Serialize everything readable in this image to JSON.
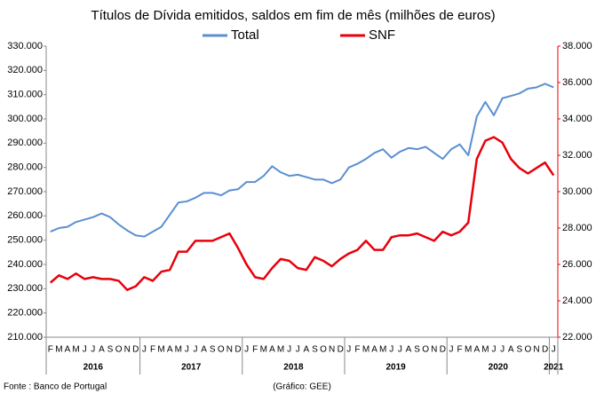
{
  "chart_data": {
    "type": "line",
    "title": "Títulos de Dívida emitidos, saldos em fim de mês  (milhões de euros)",
    "source": "Fonte : Banco de Portugal",
    "credit": "(Gráfico: GEE)",
    "categories": [
      "F",
      "M",
      "A",
      "M",
      "J",
      "J",
      "A",
      "S",
      "O",
      "N",
      "D",
      "J",
      "F",
      "M",
      "A",
      "M",
      "J",
      "J",
      "A",
      "S",
      "O",
      "N",
      "D",
      "J",
      "F",
      "M",
      "A",
      "M",
      "J",
      "J",
      "A",
      "S",
      "O",
      "N",
      "D",
      "J",
      "F",
      "M",
      "A",
      "M",
      "J",
      "J",
      "A",
      "S",
      "O",
      "N",
      "D",
      "J",
      "F",
      "M",
      "A",
      "M",
      "J",
      "J",
      "A",
      "S",
      "O",
      "N",
      "D",
      "J"
    ],
    "year_labels": [
      "2016",
      "2017",
      "2018",
      "2019",
      "2020",
      "2021"
    ],
    "ylim": [
      210000,
      330000
    ],
    "yticks": [
      {
        "value": 210000,
        "label": "210.000"
      },
      {
        "value": 220000,
        "label": "220.000"
      },
      {
        "value": 230000,
        "label": "230.000"
      },
      {
        "value": 240000,
        "label": "240.000"
      },
      {
        "value": 250000,
        "label": "250.000"
      },
      {
        "value": 260000,
        "label": "260.000"
      },
      {
        "value": 270000,
        "label": "270.000"
      },
      {
        "value": 280000,
        "label": "280.000"
      },
      {
        "value": 290000,
        "label": "290.000"
      },
      {
        "value": 300000,
        "label": "300.000"
      },
      {
        "value": 310000,
        "label": "310.000"
      },
      {
        "value": 320000,
        "label": "320.000"
      },
      {
        "value": 330000,
        "label": "330.000"
      }
    ],
    "y2lim": [
      22000,
      38000
    ],
    "y2ticks": [
      {
        "value": 22000,
        "label": "22.000"
      },
      {
        "value": 24000,
        "label": "24.000"
      },
      {
        "value": 26000,
        "label": "26.000"
      },
      {
        "value": 28000,
        "label": "28.000"
      },
      {
        "value": 30000,
        "label": "30.000"
      },
      {
        "value": 32000,
        "label": "32.000"
      },
      {
        "value": 34000,
        "label": "34.000"
      },
      {
        "value": 36000,
        "label": "36.000"
      },
      {
        "value": 38000,
        "label": "38.000"
      }
    ],
    "series": [
      {
        "name": "Total",
        "color": "#5b8fd0",
        "values": [
          253500,
          255000,
          255500,
          257500,
          258500,
          259500,
          261000,
          259500,
          256500,
          254000,
          252000,
          251500,
          253500,
          255500,
          260500,
          265500,
          266000,
          267500,
          269500,
          269500,
          268500,
          270500,
          271000,
          274000,
          274000,
          276500,
          280500,
          278000,
          276500,
          277000,
          276000,
          275000,
          275000,
          273500,
          275000,
          280000,
          281500,
          283500,
          286000,
          287500,
          284000,
          286500,
          288000,
          287500,
          288500,
          286000,
          283500,
          287500,
          289500,
          285000,
          301000,
          307000,
          301500,
          308500,
          309500,
          310500,
          312500,
          313000,
          314500,
          313000
        ]
      },
      {
        "name": "SNF",
        "color": "#e8000b",
        "axis": "y2",
        "values": [
          25000,
          25400,
          25200,
          25500,
          25200,
          25300,
          25200,
          25200,
          25100,
          24600,
          24800,
          25300,
          25100,
          25600,
          25700,
          26700,
          26700,
          27300,
          27300,
          27300,
          27500,
          27700,
          26900,
          26000,
          25300,
          25200,
          25800,
          26300,
          26200,
          25800,
          25700,
          26400,
          26200,
          25900,
          26300,
          26600,
          26800,
          27300,
          26800,
          26800,
          27500,
          27600,
          27600,
          27700,
          27500,
          27300,
          27800,
          27600,
          27800,
          28300,
          31800,
          32800,
          33000,
          32700,
          31800,
          31300,
          31000,
          31300,
          31600,
          30900
        ]
      }
    ]
  }
}
